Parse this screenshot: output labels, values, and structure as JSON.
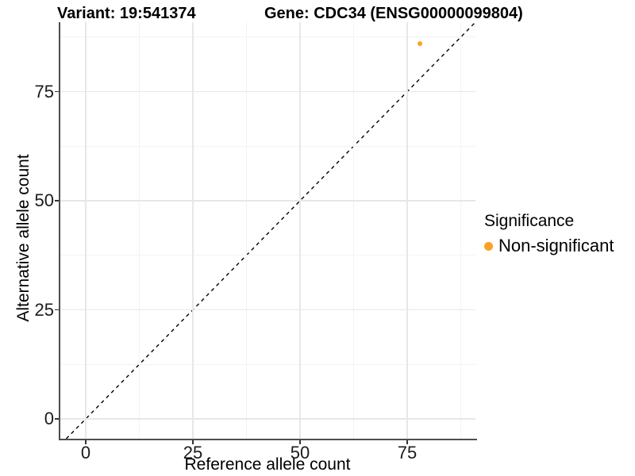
{
  "title": {
    "variant": "Variant: 19:541374",
    "gene": "Gene: CDC34 (ENSG00000099804)"
  },
  "axes": {
    "x": {
      "label": "Reference allele count",
      "ticks": [
        "0",
        "25",
        "50",
        "75"
      ],
      "tick_values": [
        0,
        25,
        50,
        75
      ],
      "minor_values": [
        12.5,
        37.5,
        62.5,
        87.5
      ]
    },
    "y": {
      "label": "Alternative allele count",
      "ticks": [
        "0",
        "25",
        "50",
        "75"
      ],
      "tick_values": [
        0,
        25,
        50,
        75
      ],
      "minor_values": [
        12.5,
        37.5,
        62.5,
        87.5
      ]
    }
  },
  "legend": {
    "title": "Significance",
    "items": [
      {
        "label": "Non-significant",
        "color": "#F9A229"
      }
    ]
  },
  "chart_data": {
    "type": "scatter",
    "title": "Variant: 19:541374",
    "subtitle": "Gene: CDC34 (ENSG00000099804)",
    "xlabel": "Reference allele count",
    "ylabel": "Alternative allele count",
    "xlim": [
      -6,
      91
    ],
    "ylim": [
      -4.5,
      91
    ],
    "x_ticks": [
      0,
      25,
      50,
      75
    ],
    "y_ticks": [
      0,
      25,
      50,
      75
    ],
    "grid": true,
    "legend_position": "right",
    "series": [
      {
        "name": "Non-significant",
        "color": "#F9A229",
        "points": [
          {
            "x": 78,
            "y": 86
          }
        ]
      }
    ],
    "reference_line": {
      "slope": 1,
      "intercept": 0,
      "linetype": "dashed",
      "color": "#000000"
    }
  },
  "colors": {
    "point": "#F9A229",
    "grid_major": "#E7E7E7",
    "grid_minor": "#F3F3F3",
    "axis_line": "#4D4D4D",
    "tick": "#333333",
    "text": "#000000"
  }
}
